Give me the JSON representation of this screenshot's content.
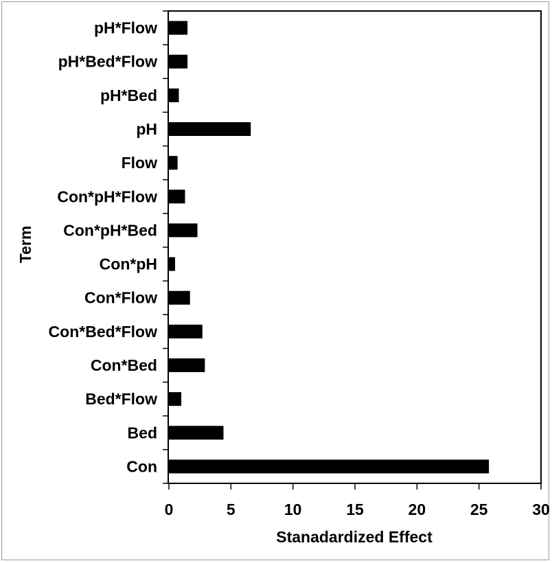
{
  "chart_data": {
    "type": "bar",
    "orientation": "horizontal",
    "title": "",
    "xlabel": "Stanadardized Effect",
    "ylabel": "Term",
    "xlim": [
      0,
      30
    ],
    "xticks": [
      0,
      5,
      10,
      15,
      20,
      25,
      30
    ],
    "grid": false,
    "legend": "none",
    "bar_color": "#000000",
    "categories": [
      "Con",
      "Bed",
      "Bed*Flow",
      "Con*Bed",
      "Con*Bed*Flow",
      "Con*Flow",
      "Con*pH",
      "Con*pH*Bed",
      "Con*pH*Flow",
      "Flow",
      "pH",
      "pH*Bed",
      "pH*Bed*Flow",
      "pH*Flow"
    ],
    "values": [
      25.8,
      4.4,
      1.0,
      2.9,
      2.7,
      1.7,
      0.5,
      2.3,
      1.3,
      0.7,
      6.6,
      0.8,
      1.5,
      1.5
    ]
  }
}
